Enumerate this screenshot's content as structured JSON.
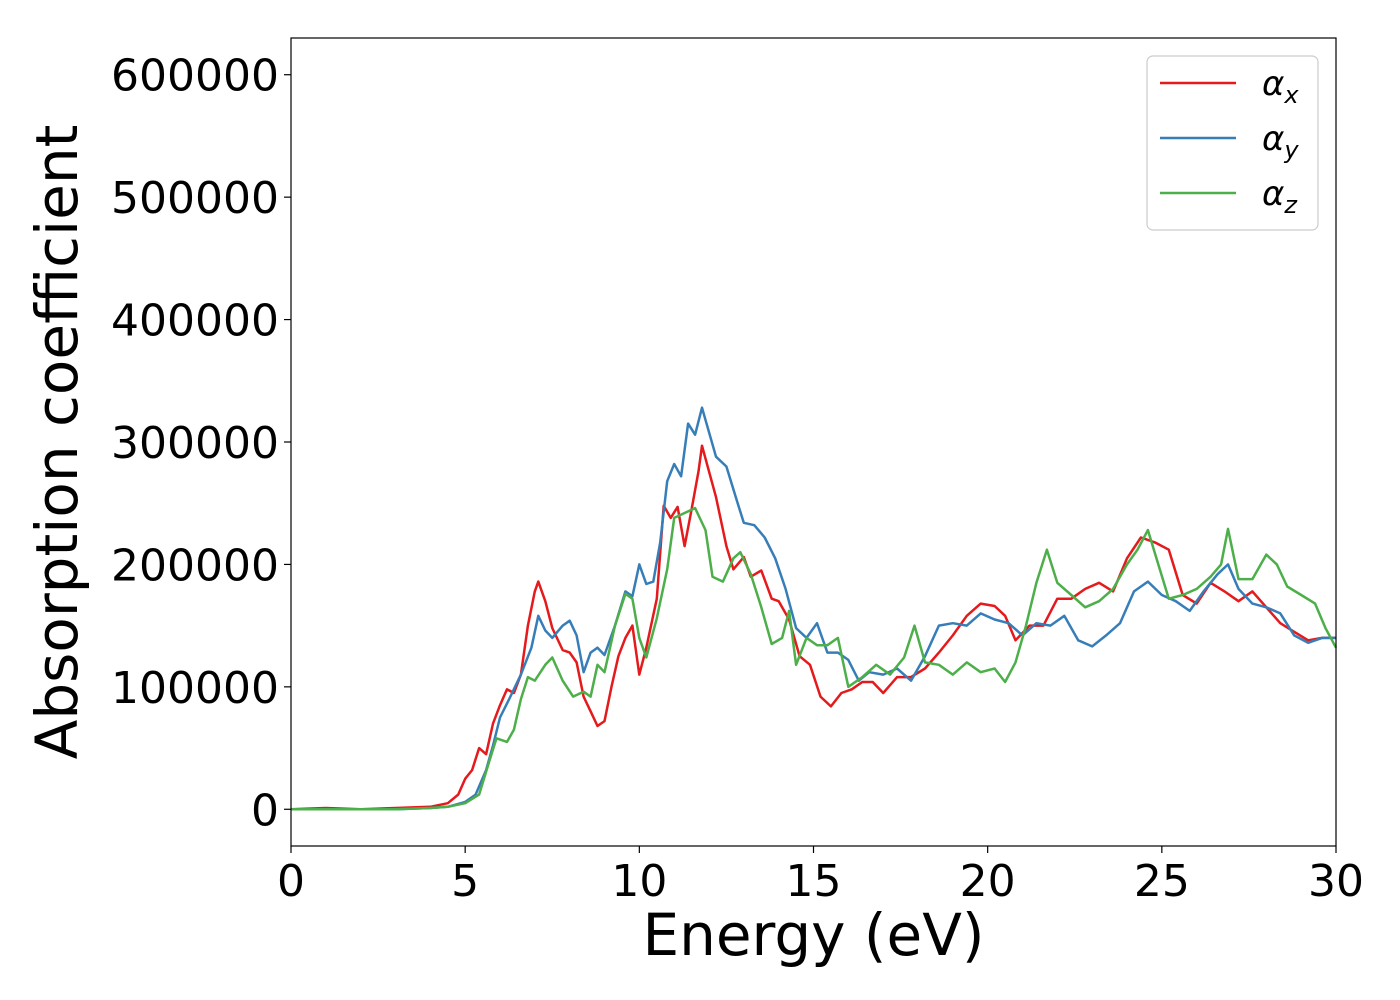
{
  "chart_data": {
    "type": "line",
    "xlabel": "Energy (eV)",
    "ylabel": "Absorption coefficient",
    "xlim": [
      0,
      30
    ],
    "ylim": [
      -30000,
      630000
    ],
    "xticks": [
      0,
      5,
      10,
      15,
      20,
      25,
      30
    ],
    "xtick_labels": [
      "0",
      "5",
      "10",
      "15",
      "20",
      "25",
      "30"
    ],
    "yticks": [
      0,
      100000,
      200000,
      300000,
      400000,
      500000,
      600000
    ],
    "ytick_labels": [
      "0",
      "100000",
      "200000",
      "300000",
      "400000",
      "500000",
      "600000"
    ],
    "grid": false,
    "legend_position": "top-right",
    "series": [
      {
        "name": "α_x",
        "legend_base": "α",
        "legend_sub": "x",
        "color": "#e41a1c",
        "points": [
          [
            0,
            0
          ],
          [
            1,
            1000
          ],
          [
            2,
            0
          ],
          [
            3,
            1000
          ],
          [
            4,
            2000
          ],
          [
            4.5,
            5000
          ],
          [
            4.8,
            12000
          ],
          [
            5.0,
            25000
          ],
          [
            5.2,
            32000
          ],
          [
            5.4,
            50000
          ],
          [
            5.6,
            45000
          ],
          [
            5.8,
            70000
          ],
          [
            6.0,
            85000
          ],
          [
            6.2,
            98000
          ],
          [
            6.4,
            95000
          ],
          [
            6.6,
            110000
          ],
          [
            6.8,
            150000
          ],
          [
            7.0,
            178000
          ],
          [
            7.1,
            186000
          ],
          [
            7.3,
            170000
          ],
          [
            7.5,
            148000
          ],
          [
            7.8,
            130000
          ],
          [
            8.0,
            128000
          ],
          [
            8.2,
            120000
          ],
          [
            8.4,
            92000
          ],
          [
            8.6,
            80000
          ],
          [
            8.8,
            68000
          ],
          [
            9.0,
            72000
          ],
          [
            9.2,
            100000
          ],
          [
            9.4,
            125000
          ],
          [
            9.6,
            140000
          ],
          [
            9.8,
            150000
          ],
          [
            10.0,
            110000
          ],
          [
            10.2,
            132000
          ],
          [
            10.5,
            172000
          ],
          [
            10.7,
            248000
          ],
          [
            10.9,
            238000
          ],
          [
            11.1,
            247000
          ],
          [
            11.3,
            215000
          ],
          [
            11.5,
            245000
          ],
          [
            11.7,
            276000
          ],
          [
            11.8,
            297000
          ],
          [
            12.0,
            276000
          ],
          [
            12.2,
            255000
          ],
          [
            12.5,
            215000
          ],
          [
            12.7,
            196000
          ],
          [
            13.0,
            206000
          ],
          [
            13.2,
            190000
          ],
          [
            13.5,
            195000
          ],
          [
            13.8,
            172000
          ],
          [
            14.0,
            170000
          ],
          [
            14.3,
            155000
          ],
          [
            14.6,
            125000
          ],
          [
            14.9,
            118000
          ],
          [
            15.2,
            92000
          ],
          [
            15.5,
            84000
          ],
          [
            15.8,
            95000
          ],
          [
            16.1,
            98000
          ],
          [
            16.4,
            104000
          ],
          [
            16.7,
            104000
          ],
          [
            17.0,
            95000
          ],
          [
            17.4,
            108000
          ],
          [
            17.8,
            108000
          ],
          [
            18.2,
            115000
          ],
          [
            18.6,
            128000
          ],
          [
            19.0,
            142000
          ],
          [
            19.4,
            158000
          ],
          [
            19.8,
            168000
          ],
          [
            20.2,
            166000
          ],
          [
            20.5,
            158000
          ],
          [
            20.8,
            138000
          ],
          [
            21.2,
            150000
          ],
          [
            21.6,
            150000
          ],
          [
            22.0,
            172000
          ],
          [
            22.4,
            172000
          ],
          [
            22.8,
            180000
          ],
          [
            23.2,
            185000
          ],
          [
            23.6,
            178000
          ],
          [
            24.0,
            205000
          ],
          [
            24.4,
            222000
          ],
          [
            24.8,
            218000
          ],
          [
            25.2,
            212000
          ],
          [
            25.6,
            175000
          ],
          [
            26.0,
            168000
          ],
          [
            26.4,
            185000
          ],
          [
            26.8,
            178000
          ],
          [
            27.2,
            170000
          ],
          [
            27.6,
            178000
          ],
          [
            28.0,
            165000
          ],
          [
            28.4,
            152000
          ],
          [
            28.8,
            145000
          ],
          [
            29.2,
            138000
          ],
          [
            29.6,
            140000
          ],
          [
            30.0,
            140000
          ]
        ]
      },
      {
        "name": "α_y",
        "legend_base": "α",
        "legend_sub": "y",
        "color": "#377eb8",
        "points": [
          [
            0,
            0
          ],
          [
            1,
            0
          ],
          [
            2,
            0
          ],
          [
            3,
            0
          ],
          [
            4,
            1000
          ],
          [
            4.5,
            2000
          ],
          [
            5.0,
            6000
          ],
          [
            5.3,
            12000
          ],
          [
            5.6,
            32000
          ],
          [
            5.8,
            52000
          ],
          [
            6.0,
            75000
          ],
          [
            6.3,
            92000
          ],
          [
            6.6,
            110000
          ],
          [
            6.9,
            132000
          ],
          [
            7.1,
            158000
          ],
          [
            7.3,
            146000
          ],
          [
            7.5,
            140000
          ],
          [
            7.8,
            150000
          ],
          [
            8.0,
            154000
          ],
          [
            8.2,
            142000
          ],
          [
            8.4,
            112000
          ],
          [
            8.6,
            128000
          ],
          [
            8.8,
            132000
          ],
          [
            9.0,
            126000
          ],
          [
            9.3,
            150000
          ],
          [
            9.6,
            178000
          ],
          [
            9.8,
            174000
          ],
          [
            10.0,
            200000
          ],
          [
            10.2,
            184000
          ],
          [
            10.4,
            186000
          ],
          [
            10.6,
            218000
          ],
          [
            10.8,
            268000
          ],
          [
            11.0,
            282000
          ],
          [
            11.2,
            272000
          ],
          [
            11.4,
            315000
          ],
          [
            11.6,
            306000
          ],
          [
            11.8,
            328000
          ],
          [
            12.0,
            308000
          ],
          [
            12.2,
            288000
          ],
          [
            12.5,
            280000
          ],
          [
            12.8,
            252000
          ],
          [
            13.0,
            234000
          ],
          [
            13.3,
            232000
          ],
          [
            13.6,
            222000
          ],
          [
            13.9,
            205000
          ],
          [
            14.2,
            180000
          ],
          [
            14.5,
            148000
          ],
          [
            14.8,
            140000
          ],
          [
            15.1,
            152000
          ],
          [
            15.4,
            128000
          ],
          [
            15.7,
            128000
          ],
          [
            16.0,
            122000
          ],
          [
            16.3,
            105000
          ],
          [
            16.6,
            112000
          ],
          [
            17.0,
            110000
          ],
          [
            17.4,
            115000
          ],
          [
            17.8,
            105000
          ],
          [
            18.2,
            125000
          ],
          [
            18.6,
            150000
          ],
          [
            19.0,
            152000
          ],
          [
            19.4,
            150000
          ],
          [
            19.8,
            160000
          ],
          [
            20.2,
            155000
          ],
          [
            20.6,
            152000
          ],
          [
            21.0,
            142000
          ],
          [
            21.4,
            152000
          ],
          [
            21.8,
            150000
          ],
          [
            22.2,
            158000
          ],
          [
            22.6,
            138000
          ],
          [
            23.0,
            133000
          ],
          [
            23.4,
            142000
          ],
          [
            23.8,
            152000
          ],
          [
            24.2,
            178000
          ],
          [
            24.6,
            186000
          ],
          [
            25.0,
            175000
          ],
          [
            25.4,
            170000
          ],
          [
            25.8,
            162000
          ],
          [
            26.2,
            178000
          ],
          [
            26.6,
            192000
          ],
          [
            26.9,
            200000
          ],
          [
            27.2,
            180000
          ],
          [
            27.6,
            168000
          ],
          [
            28.0,
            165000
          ],
          [
            28.4,
            160000
          ],
          [
            28.8,
            142000
          ],
          [
            29.2,
            136000
          ],
          [
            29.6,
            140000
          ],
          [
            30.0,
            140000
          ]
        ]
      },
      {
        "name": "α_z",
        "legend_base": "α",
        "legend_sub": "z",
        "color": "#4daf4a",
        "points": [
          [
            0,
            0
          ],
          [
            1,
            0
          ],
          [
            2,
            0
          ],
          [
            3,
            0
          ],
          [
            4,
            1000
          ],
          [
            4.5,
            2000
          ],
          [
            5.0,
            5000
          ],
          [
            5.4,
            12000
          ],
          [
            5.7,
            40000
          ],
          [
            5.9,
            58000
          ],
          [
            6.2,
            55000
          ],
          [
            6.4,
            65000
          ],
          [
            6.6,
            90000
          ],
          [
            6.8,
            108000
          ],
          [
            7.0,
            105000
          ],
          [
            7.3,
            118000
          ],
          [
            7.5,
            124000
          ],
          [
            7.8,
            105000
          ],
          [
            8.1,
            92000
          ],
          [
            8.4,
            96000
          ],
          [
            8.6,
            92000
          ],
          [
            8.8,
            118000
          ],
          [
            9.0,
            112000
          ],
          [
            9.3,
            150000
          ],
          [
            9.6,
            176000
          ],
          [
            9.8,
            172000
          ],
          [
            10.0,
            140000
          ],
          [
            10.2,
            124000
          ],
          [
            10.5,
            156000
          ],
          [
            10.8,
            196000
          ],
          [
            11.0,
            238000
          ],
          [
            11.3,
            242000
          ],
          [
            11.6,
            246000
          ],
          [
            11.9,
            228000
          ],
          [
            12.1,
            190000
          ],
          [
            12.4,
            186000
          ],
          [
            12.7,
            205000
          ],
          [
            12.9,
            210000
          ],
          [
            13.2,
            192000
          ],
          [
            13.5,
            165000
          ],
          [
            13.8,
            135000
          ],
          [
            14.1,
            140000
          ],
          [
            14.3,
            162000
          ],
          [
            14.5,
            118000
          ],
          [
            14.8,
            140000
          ],
          [
            15.1,
            134000
          ],
          [
            15.4,
            134000
          ],
          [
            15.7,
            140000
          ],
          [
            16.0,
            100000
          ],
          [
            16.4,
            108000
          ],
          [
            16.8,
            118000
          ],
          [
            17.2,
            110000
          ],
          [
            17.6,
            124000
          ],
          [
            17.9,
            150000
          ],
          [
            18.2,
            120000
          ],
          [
            18.6,
            118000
          ],
          [
            19.0,
            110000
          ],
          [
            19.4,
            120000
          ],
          [
            19.8,
            112000
          ],
          [
            20.2,
            115000
          ],
          [
            20.5,
            104000
          ],
          [
            20.8,
            120000
          ],
          [
            21.1,
            150000
          ],
          [
            21.4,
            185000
          ],
          [
            21.7,
            212000
          ],
          [
            22.0,
            185000
          ],
          [
            22.4,
            175000
          ],
          [
            22.8,
            165000
          ],
          [
            23.2,
            170000
          ],
          [
            23.6,
            180000
          ],
          [
            24.0,
            200000
          ],
          [
            24.3,
            212000
          ],
          [
            24.6,
            228000
          ],
          [
            24.9,
            200000
          ],
          [
            25.2,
            172000
          ],
          [
            25.6,
            175000
          ],
          [
            26.0,
            180000
          ],
          [
            26.4,
            190000
          ],
          [
            26.7,
            200000
          ],
          [
            26.9,
            229000
          ],
          [
            27.2,
            188000
          ],
          [
            27.6,
            188000
          ],
          [
            28.0,
            208000
          ],
          [
            28.3,
            200000
          ],
          [
            28.6,
            182000
          ],
          [
            29.0,
            175000
          ],
          [
            29.4,
            168000
          ],
          [
            29.7,
            148000
          ],
          [
            30.0,
            132000
          ]
        ]
      }
    ]
  }
}
